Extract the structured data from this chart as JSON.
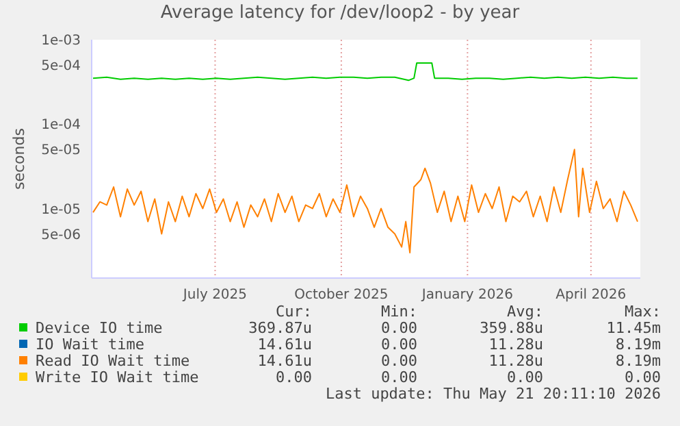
{
  "chart_data": {
    "type": "line",
    "title": "Average latency for /dev/loop2 - by year",
    "ylabel": "seconds",
    "log": "y",
    "grid": true,
    "legend": "bottom",
    "xlim": [
      "2025-04-17",
      "2026-05-22"
    ],
    "xticks": [
      {
        "value": "2025-07-16",
        "label": "July 2025"
      },
      {
        "value": "2025-10-16",
        "label": "October 2025"
      },
      {
        "value": "2026-01-16",
        "label": "January 2026"
      },
      {
        "value": "2026-04-16",
        "label": "April 2026"
      }
    ],
    "ylim": [
      1.5e-06,
      0.001
    ],
    "yticks": [
      {
        "value": 0.001,
        "label": "1e-03"
      },
      {
        "value": 0.0005,
        "label": "5e-04"
      },
      {
        "value": 0.0001,
        "label": "1e-04"
      },
      {
        "value": 5e-05,
        "label": "5e-05"
      },
      {
        "value": 1e-05,
        "label": "1e-05"
      },
      {
        "value": 5e-06,
        "label": "5e-06"
      }
    ],
    "series": [
      {
        "name": "Device IO time",
        "color": "#00cc00",
        "x": [
          "2025-04-18",
          "2025-04-28",
          "2025-05-08",
          "2025-05-18",
          "2025-05-28",
          "2025-06-07",
          "2025-06-17",
          "2025-06-27",
          "2025-07-07",
          "2025-07-17",
          "2025-07-27",
          "2025-08-06",
          "2025-08-16",
          "2025-08-26",
          "2025-09-05",
          "2025-09-15",
          "2025-09-25",
          "2025-10-05",
          "2025-10-15",
          "2025-10-25",
          "2025-11-04",
          "2025-11-14",
          "2025-11-24",
          "2025-12-04",
          "2025-12-08",
          "2025-12-10",
          "2025-12-21",
          "2025-12-23",
          "2026-01-02",
          "2026-01-12",
          "2026-01-22",
          "2026-02-01",
          "2026-02-11",
          "2026-02-21",
          "2026-03-03",
          "2026-03-13",
          "2026-03-23",
          "2026-04-02",
          "2026-04-12",
          "2026-04-22",
          "2026-05-02",
          "2026-05-12",
          "2026-05-20"
        ],
        "values": [
          0.00035,
          0.00036,
          0.00034,
          0.00035,
          0.00034,
          0.00035,
          0.00034,
          0.00035,
          0.00034,
          0.00035,
          0.00034,
          0.00035,
          0.00036,
          0.00035,
          0.00034,
          0.00035,
          0.00036,
          0.00035,
          0.00036,
          0.00036,
          0.00035,
          0.00036,
          0.00036,
          0.00033,
          0.00035,
          0.00053,
          0.00053,
          0.00035,
          0.00035,
          0.00034,
          0.00035,
          0.00035,
          0.00034,
          0.00035,
          0.00036,
          0.00035,
          0.00036,
          0.00035,
          0.00036,
          0.00035,
          0.00036,
          0.00035,
          0.00035
        ]
      },
      {
        "name": "IO Wait time",
        "color": "#0066b3"
      },
      {
        "name": "Read IO Wait time",
        "color": "#ff8000",
        "x": [
          "2025-04-18",
          "2025-04-23",
          "2025-04-28",
          "2025-05-03",
          "2025-05-08",
          "2025-05-13",
          "2025-05-18",
          "2025-05-23",
          "2025-05-28",
          "2025-06-02",
          "2025-06-07",
          "2025-06-12",
          "2025-06-17",
          "2025-06-22",
          "2025-06-27",
          "2025-07-02",
          "2025-07-07",
          "2025-07-12",
          "2025-07-17",
          "2025-07-22",
          "2025-07-27",
          "2025-08-01",
          "2025-08-06",
          "2025-08-11",
          "2025-08-16",
          "2025-08-21",
          "2025-08-26",
          "2025-08-31",
          "2025-09-05",
          "2025-09-10",
          "2025-09-15",
          "2025-09-20",
          "2025-09-25",
          "2025-09-30",
          "2025-10-05",
          "2025-10-10",
          "2025-10-15",
          "2025-10-20",
          "2025-10-25",
          "2025-10-30",
          "2025-11-04",
          "2025-11-09",
          "2025-11-14",
          "2025-11-19",
          "2025-11-24",
          "2025-11-29",
          "2025-12-02",
          "2025-12-05",
          "2025-12-08",
          "2025-12-13",
          "2025-12-16",
          "2025-12-20",
          "2025-12-25",
          "2025-12-30",
          "2026-01-04",
          "2026-01-09",
          "2026-01-14",
          "2026-01-19",
          "2026-01-24",
          "2026-01-29",
          "2026-02-03",
          "2026-02-08",
          "2026-02-13",
          "2026-02-18",
          "2026-02-23",
          "2026-02-28",
          "2026-03-05",
          "2026-03-10",
          "2026-03-15",
          "2026-03-20",
          "2026-03-25",
          "2026-03-30",
          "2026-04-04",
          "2026-04-07",
          "2026-04-10",
          "2026-04-15",
          "2026-04-20",
          "2026-04-25",
          "2026-04-30",
          "2026-05-05",
          "2026-05-10",
          "2026-05-15",
          "2026-05-20"
        ],
        "values": [
          9e-06,
          1.2e-05,
          1.1e-05,
          1.8e-05,
          8e-06,
          1.7e-05,
          1.1e-05,
          1.6e-05,
          7e-06,
          1.3e-05,
          5e-06,
          1.2e-05,
          7e-06,
          1.4e-05,
          8e-06,
          1.5e-05,
          1e-05,
          1.7e-05,
          9e-06,
          1.3e-05,
          7e-06,
          1.2e-05,
          6e-06,
          1.1e-05,
          8e-06,
          1.3e-05,
          7e-06,
          1.5e-05,
          9e-06,
          1.4e-05,
          7e-06,
          1.1e-05,
          1e-05,
          1.5e-05,
          8e-06,
          1.3e-05,
          9e-06,
          1.9e-05,
          8e-06,
          1.4e-05,
          1e-05,
          6e-06,
          1e-05,
          6e-06,
          5e-06,
          3.5e-06,
          7e-06,
          3e-06,
          1.8e-05,
          2.2e-05,
          3e-05,
          2e-05,
          9e-06,
          1.6e-05,
          7e-06,
          1.4e-05,
          7e-06,
          1.9e-05,
          9e-06,
          1.5e-05,
          1e-05,
          1.8e-05,
          7e-06,
          1.4e-05,
          1.2e-05,
          1.6e-05,
          8e-06,
          1.4e-05,
          7e-06,
          1.8e-05,
          9e-06,
          2.2e-05,
          5e-05,
          8e-06,
          3e-05,
          9e-06,
          2.1e-05,
          1e-05,
          1.3e-05,
          7e-06,
          1.6e-05,
          1.1e-05,
          7e-06
        ]
      },
      {
        "name": "Write IO Wait time",
        "color": "#ffcc00"
      }
    ],
    "annotations": [
      "Cur:",
      "Min:",
      "Avg:",
      "Max:",
      "369.87u",
      "0.00",
      "359.88u",
      "11.45m",
      "14.61u",
      "0.00",
      "11.28u",
      "8.19m",
      "14.61u",
      "0.00",
      "11.28u",
      "8.19m",
      "0.00",
      "0.00",
      "0.00",
      "0.00",
      "Last update: Thu May 21 20:11:10 2026"
    ]
  }
}
